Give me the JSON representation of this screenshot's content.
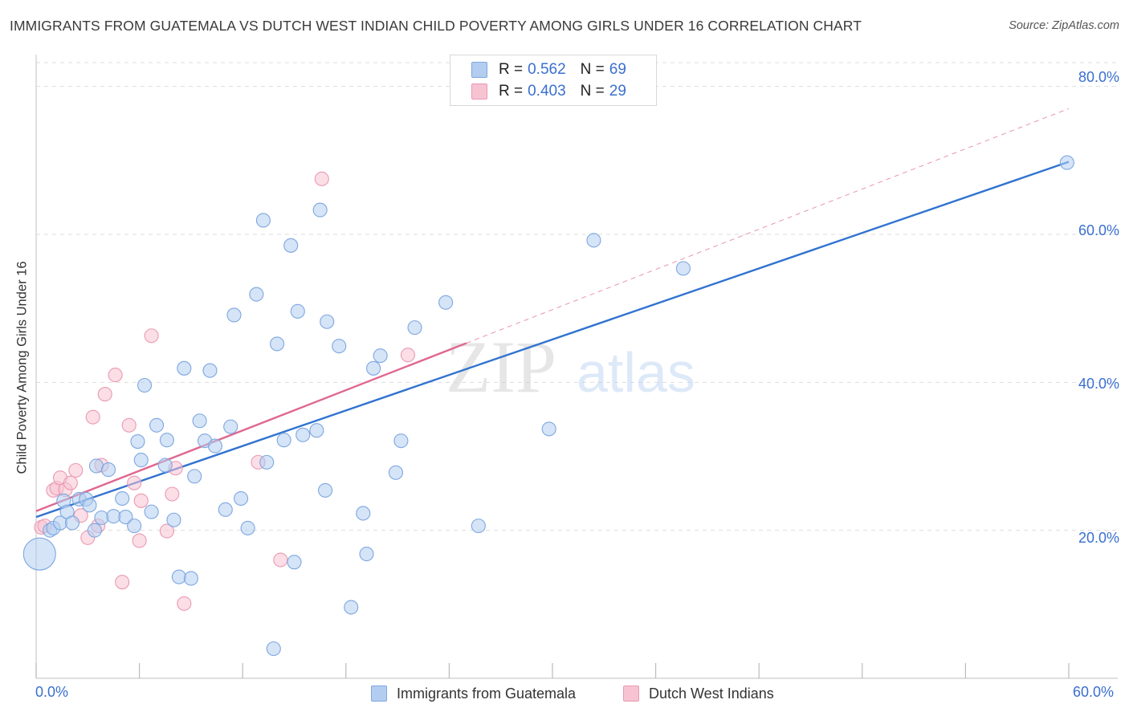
{
  "title": "IMMIGRANTS FROM GUATEMALA VS DUTCH WEST INDIAN CHILD POVERTY AMONG GIRLS UNDER 16 CORRELATION CHART",
  "source": "Source: ZipAtlas.com",
  "watermark": {
    "zip": "ZIP",
    "atlas": "atlas"
  },
  "legend": {
    "r_label": "R =",
    "n_label": "N =",
    "rows": [
      {
        "r": "0.562",
        "n": "69",
        "color": "#a8c6f0"
      },
      {
        "r": "0.403",
        "n": "29",
        "color": "#f5b6c8"
      }
    ]
  },
  "x_ticks": {
    "left": "0.0%",
    "right": "60.0%"
  },
  "y_ticks": [
    "80.0%",
    "60.0%",
    "40.0%",
    "20.0%"
  ],
  "bottom_legend": [
    "Immigrants from Guatemala",
    "Dutch West Indians"
  ],
  "colors": {
    "blue_fill": "#b3cdf0",
    "blue_stroke": "#7ea7e0",
    "blue_line": "#3173d0",
    "pink_fill": "#f7c3d2",
    "pink_stroke": "#ea9ab3",
    "pink_line": "#e0678f",
    "grid": "#dddddd",
    "axis_text": "#3a6fd0"
  },
  "chart_data": {
    "type": "scatter",
    "title": "IMMIGRANTS FROM GUATEMALA VS DUTCH WEST INDIAN CHILD POVERTY AMONG GIRLS UNDER 16 CORRELATION CHART",
    "xlabel": "",
    "ylabel": "Child Poverty Among Girls Under 16",
    "xlim": [
      0,
      60
    ],
    "ylim": [
      0,
      83
    ],
    "grid": true,
    "legend_placement": "top-center",
    "series": [
      {
        "name": "Immigrants from Guatemala",
        "R": 0.562,
        "N": 69,
        "trend": {
          "x": [
            0,
            60
          ],
          "y": [
            21.8,
            69.8
          ],
          "style": "solid"
        },
        "points": [
          [
            0.2,
            16.8,
            3
          ],
          [
            0.8,
            20.0,
            1
          ],
          [
            1.0,
            20.3,
            1
          ],
          [
            1.4,
            21.0,
            1
          ],
          [
            1.6,
            24.0,
            1
          ],
          [
            1.8,
            22.5,
            1
          ],
          [
            2.1,
            21.0,
            1
          ],
          [
            2.5,
            24.2,
            1
          ],
          [
            2.9,
            24.2,
            1
          ],
          [
            3.1,
            23.4,
            1
          ],
          [
            3.4,
            20.0,
            1
          ],
          [
            3.5,
            28.7,
            1
          ],
          [
            3.8,
            21.7,
            1
          ],
          [
            4.2,
            28.2,
            1
          ],
          [
            4.5,
            21.9,
            1
          ],
          [
            5.0,
            24.3,
            1
          ],
          [
            5.2,
            21.8,
            1
          ],
          [
            5.7,
            20.6,
            1
          ],
          [
            5.9,
            32.0,
            1
          ],
          [
            6.1,
            29.5,
            1
          ],
          [
            6.3,
            39.6,
            1
          ],
          [
            6.7,
            22.5,
            1
          ],
          [
            7.0,
            34.2,
            1
          ],
          [
            7.6,
            32.2,
            1
          ],
          [
            7.5,
            28.8,
            1
          ],
          [
            8.0,
            21.4,
            1
          ],
          [
            8.3,
            13.7,
            1
          ],
          [
            8.6,
            41.9,
            1
          ],
          [
            9.0,
            13.5,
            1
          ],
          [
            9.2,
            27.3,
            1
          ],
          [
            9.5,
            34.8,
            1
          ],
          [
            9.8,
            32.1,
            1
          ],
          [
            10.1,
            41.6,
            1
          ],
          [
            10.4,
            31.4,
            1
          ],
          [
            11.0,
            22.8,
            1
          ],
          [
            11.3,
            34.0,
            1
          ],
          [
            11.5,
            49.1,
            1
          ],
          [
            11.9,
            24.3,
            1
          ],
          [
            12.3,
            20.3,
            1
          ],
          [
            12.8,
            51.9,
            1
          ],
          [
            13.2,
            61.9,
            1
          ],
          [
            13.4,
            29.2,
            1
          ],
          [
            13.8,
            4.0,
            1
          ],
          [
            14.0,
            45.2,
            1
          ],
          [
            14.4,
            32.2,
            1
          ],
          [
            14.8,
            58.5,
            1
          ],
          [
            15.0,
            15.7,
            1
          ],
          [
            15.2,
            49.6,
            1
          ],
          [
            15.5,
            32.9,
            1
          ],
          [
            16.3,
            33.5,
            1
          ],
          [
            16.5,
            63.3,
            1
          ],
          [
            16.8,
            25.4,
            1
          ],
          [
            16.9,
            48.2,
            1
          ],
          [
            17.6,
            44.9,
            1
          ],
          [
            18.3,
            9.6,
            1
          ],
          [
            19.0,
            22.3,
            1
          ],
          [
            19.2,
            16.8,
            1
          ],
          [
            19.6,
            41.9,
            1
          ],
          [
            20.0,
            43.6,
            1
          ],
          [
            20.9,
            27.8,
            1
          ],
          [
            21.2,
            32.1,
            1
          ],
          [
            22.0,
            47.4,
            1
          ],
          [
            23.8,
            50.8,
            1
          ],
          [
            25.7,
            20.6,
            1
          ],
          [
            29.8,
            33.7,
            1
          ],
          [
            32.4,
            59.2,
            1
          ],
          [
            37.6,
            55.4,
            1
          ],
          [
            59.9,
            69.7,
            1
          ]
        ]
      },
      {
        "name": "Dutch West Indians",
        "R": 0.403,
        "N": 29,
        "trend": {
          "x": [
            0,
            25
          ],
          "y": [
            22.6,
            45.3
          ],
          "style": "solid"
        },
        "trend_extension": {
          "x": [
            25,
            60
          ],
          "y": [
            45.3,
            77.0
          ],
          "style": "dashed"
        },
        "points": [
          [
            0.3,
            20.4
          ],
          [
            0.5,
            20.6
          ],
          [
            1.0,
            25.4
          ],
          [
            1.2,
            25.7
          ],
          [
            1.4,
            27.1
          ],
          [
            1.7,
            25.5
          ],
          [
            2.0,
            26.4
          ],
          [
            2.3,
            28.1
          ],
          [
            2.6,
            22.0
          ],
          [
            3.0,
            19.0
          ],
          [
            3.3,
            35.3
          ],
          [
            3.6,
            20.6
          ],
          [
            3.8,
            28.8
          ],
          [
            4.0,
            38.4
          ],
          [
            4.6,
            41.0
          ],
          [
            5.0,
            13.0
          ],
          [
            5.4,
            34.2
          ],
          [
            5.7,
            26.4
          ],
          [
            6.0,
            18.6
          ],
          [
            6.1,
            24.0
          ],
          [
            6.7,
            46.3
          ],
          [
            7.6,
            19.9
          ],
          [
            7.9,
            24.9
          ],
          [
            8.1,
            28.4
          ],
          [
            8.6,
            10.1
          ],
          [
            12.9,
            29.2
          ],
          [
            14.2,
            16.0
          ],
          [
            16.6,
            67.5
          ],
          [
            21.6,
            43.7
          ]
        ]
      }
    ]
  }
}
